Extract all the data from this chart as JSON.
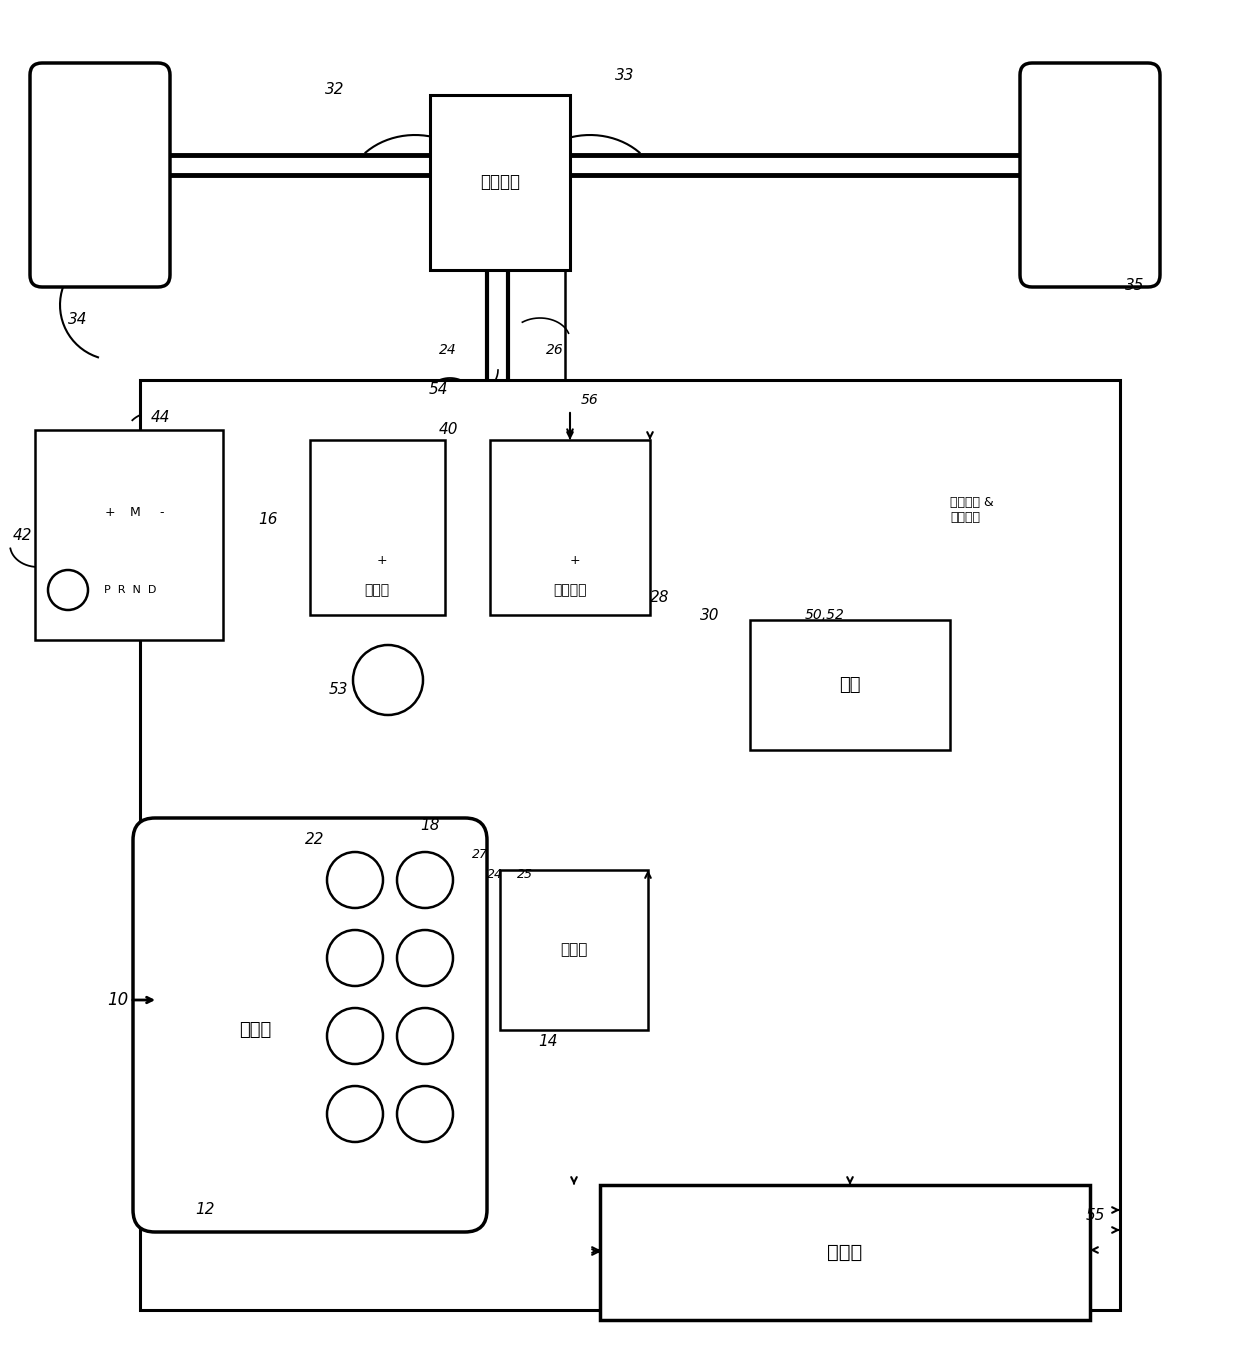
{
  "bg": "#ffffff",
  "lc": "#000000",
  "fw": 12.4,
  "fh": 13.59,
  "labels": {
    "trans": "主变速器",
    "alt": "变速器",
    "pump": "电辅助泵",
    "bat": "电池",
    "ctrl": "整制器",
    "start": "起动机",
    "engine": "发动机",
    "pedal": "加速蹏板 &\n制动蹏板"
  }
}
